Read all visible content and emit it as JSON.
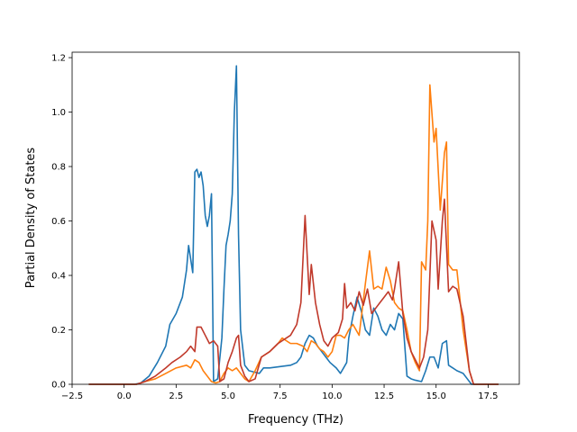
{
  "chart_data": {
    "type": "line",
    "title": "",
    "xlabel": "Frequency (THz)",
    "ylabel": "Partial Density of States",
    "xlim": [
      -2.5,
      19.0
    ],
    "ylim": [
      0.0,
      1.22
    ],
    "xticks": [
      -2.5,
      0.0,
      2.5,
      5.0,
      7.5,
      10.0,
      12.5,
      15.0,
      17.5
    ],
    "xtick_labels": [
      "−2.5",
      "0.0",
      "2.5",
      "5.0",
      "7.5",
      "10.0",
      "12.5",
      "15.0",
      "17.5"
    ],
    "yticks": [
      0.0,
      0.2,
      0.4,
      0.6,
      0.8,
      1.0,
      1.2
    ],
    "ytick_labels": [
      "0.0",
      "0.2",
      "0.4",
      "0.6",
      "0.8",
      "1.0",
      "1.2"
    ],
    "grid": false,
    "legend": false,
    "series": [
      {
        "color": "#1f77b4",
        "points": [
          [
            -1.7,
            0
          ],
          [
            0.5,
            0
          ],
          [
            0.8,
            0.005
          ],
          [
            1.2,
            0.03
          ],
          [
            1.6,
            0.08
          ],
          [
            2.0,
            0.14
          ],
          [
            2.2,
            0.22
          ],
          [
            2.5,
            0.26
          ],
          [
            2.8,
            0.32
          ],
          [
            3.0,
            0.42
          ],
          [
            3.1,
            0.51
          ],
          [
            3.3,
            0.41
          ],
          [
            3.4,
            0.78
          ],
          [
            3.5,
            0.79
          ],
          [
            3.6,
            0.76
          ],
          [
            3.7,
            0.78
          ],
          [
            3.8,
            0.73
          ],
          [
            3.9,
            0.62
          ],
          [
            4.0,
            0.58
          ],
          [
            4.1,
            0.62
          ],
          [
            4.2,
            0.7
          ],
          [
            4.3,
            0.01
          ],
          [
            4.5,
            0.02
          ],
          [
            4.7,
            0.17
          ],
          [
            4.8,
            0.35
          ],
          [
            4.9,
            0.51
          ],
          [
            5.0,
            0.55
          ],
          [
            5.1,
            0.6
          ],
          [
            5.2,
            0.7
          ],
          [
            5.3,
            1.0
          ],
          [
            5.4,
            1.17
          ],
          [
            5.5,
            0.55
          ],
          [
            5.6,
            0.2
          ],
          [
            5.8,
            0.07
          ],
          [
            6.0,
            0.05
          ],
          [
            6.5,
            0.04
          ],
          [
            6.7,
            0.06
          ],
          [
            7.0,
            0.06
          ],
          [
            7.5,
            0.065
          ],
          [
            8.0,
            0.07
          ],
          [
            8.3,
            0.08
          ],
          [
            8.5,
            0.1
          ],
          [
            8.7,
            0.15
          ],
          [
            8.9,
            0.18
          ],
          [
            9.1,
            0.17
          ],
          [
            9.3,
            0.14
          ],
          [
            9.5,
            0.12
          ],
          [
            9.7,
            0.1
          ],
          [
            9.9,
            0.08
          ],
          [
            10.2,
            0.06
          ],
          [
            10.4,
            0.04
          ],
          [
            10.7,
            0.08
          ],
          [
            10.8,
            0.17
          ],
          [
            11.0,
            0.25
          ],
          [
            11.2,
            0.32
          ],
          [
            11.4,
            0.27
          ],
          [
            11.6,
            0.2
          ],
          [
            11.8,
            0.18
          ],
          [
            12.0,
            0.28
          ],
          [
            12.2,
            0.25
          ],
          [
            12.4,
            0.2
          ],
          [
            12.6,
            0.18
          ],
          [
            12.8,
            0.22
          ],
          [
            13.0,
            0.2
          ],
          [
            13.2,
            0.26
          ],
          [
            13.4,
            0.24
          ],
          [
            13.6,
            0.03
          ],
          [
            13.8,
            0.02
          ],
          [
            14.0,
            0.015
          ],
          [
            14.3,
            0.01
          ],
          [
            14.5,
            0.05
          ],
          [
            14.7,
            0.1
          ],
          [
            14.9,
            0.1
          ],
          [
            15.1,
            0.06
          ],
          [
            15.3,
            0.15
          ],
          [
            15.5,
            0.16
          ],
          [
            15.6,
            0.07
          ],
          [
            15.8,
            0.06
          ],
          [
            16.0,
            0.05
          ],
          [
            16.3,
            0.04
          ],
          [
            16.5,
            0.02
          ],
          [
            16.7,
            0
          ],
          [
            18.0,
            0
          ]
        ]
      },
      {
        "color": "#ff7f0e",
        "points": [
          [
            -1.7,
            0
          ],
          [
            0.6,
            0
          ],
          [
            1.0,
            0.01
          ],
          [
            1.5,
            0.02
          ],
          [
            2.0,
            0.04
          ],
          [
            2.5,
            0.06
          ],
          [
            3.0,
            0.07
          ],
          [
            3.2,
            0.06
          ],
          [
            3.4,
            0.09
          ],
          [
            3.6,
            0.08
          ],
          [
            3.8,
            0.05
          ],
          [
            4.0,
            0.03
          ],
          [
            4.2,
            0.01
          ],
          [
            4.4,
            0.005
          ],
          [
            4.6,
            0.01
          ],
          [
            4.8,
            0.04
          ],
          [
            5.0,
            0.06
          ],
          [
            5.2,
            0.05
          ],
          [
            5.4,
            0.06
          ],
          [
            5.6,
            0.04
          ],
          [
            5.8,
            0.02
          ],
          [
            6.0,
            0.01
          ],
          [
            6.3,
            0.05
          ],
          [
            6.6,
            0.1
          ],
          [
            7.0,
            0.12
          ],
          [
            7.4,
            0.15
          ],
          [
            7.6,
            0.17
          ],
          [
            7.8,
            0.16
          ],
          [
            8.0,
            0.15
          ],
          [
            8.3,
            0.15
          ],
          [
            8.6,
            0.14
          ],
          [
            8.8,
            0.12
          ],
          [
            9.0,
            0.16
          ],
          [
            9.2,
            0.15
          ],
          [
            9.4,
            0.13
          ],
          [
            9.6,
            0.12
          ],
          [
            9.8,
            0.1
          ],
          [
            10.0,
            0.12
          ],
          [
            10.2,
            0.18
          ],
          [
            10.4,
            0.18
          ],
          [
            10.6,
            0.17
          ],
          [
            10.8,
            0.2
          ],
          [
            11.0,
            0.22
          ],
          [
            11.3,
            0.18
          ],
          [
            11.6,
            0.37
          ],
          [
            11.8,
            0.49
          ],
          [
            12.0,
            0.35
          ],
          [
            12.2,
            0.36
          ],
          [
            12.4,
            0.35
          ],
          [
            12.6,
            0.43
          ],
          [
            12.8,
            0.38
          ],
          [
            13.0,
            0.3
          ],
          [
            13.2,
            0.28
          ],
          [
            13.4,
            0.27
          ],
          [
            13.6,
            0.2
          ],
          [
            13.8,
            0.12
          ],
          [
            14.0,
            0.08
          ],
          [
            14.2,
            0.05
          ],
          [
            14.3,
            0.45
          ],
          [
            14.5,
            0.42
          ],
          [
            14.6,
            0.6
          ],
          [
            14.7,
            1.1
          ],
          [
            14.9,
            0.89
          ],
          [
            15.0,
            0.94
          ],
          [
            15.2,
            0.64
          ],
          [
            15.4,
            0.85
          ],
          [
            15.5,
            0.89
          ],
          [
            15.6,
            0.44
          ],
          [
            15.8,
            0.42
          ],
          [
            16.0,
            0.42
          ],
          [
            16.3,
            0.2
          ],
          [
            16.6,
            0.05
          ],
          [
            16.8,
            0
          ],
          [
            18.0,
            0
          ]
        ]
      },
      {
        "color": "#c0392b",
        "points": [
          [
            -1.7,
            0
          ],
          [
            0.6,
            0
          ],
          [
            1.0,
            0.01
          ],
          [
            1.5,
            0.03
          ],
          [
            2.0,
            0.06
          ],
          [
            2.3,
            0.08
          ],
          [
            2.7,
            0.1
          ],
          [
            3.0,
            0.12
          ],
          [
            3.2,
            0.14
          ],
          [
            3.4,
            0.12
          ],
          [
            3.5,
            0.21
          ],
          [
            3.7,
            0.21
          ],
          [
            3.9,
            0.18
          ],
          [
            4.1,
            0.15
          ],
          [
            4.3,
            0.16
          ],
          [
            4.5,
            0.14
          ],
          [
            4.6,
            0.01
          ],
          [
            4.8,
            0.02
          ],
          [
            5.0,
            0.08
          ],
          [
            5.2,
            0.12
          ],
          [
            5.4,
            0.17
          ],
          [
            5.5,
            0.18
          ],
          [
            5.6,
            0.07
          ],
          [
            5.8,
            0.03
          ],
          [
            6.0,
            0.01
          ],
          [
            6.3,
            0.02
          ],
          [
            6.6,
            0.1
          ],
          [
            7.0,
            0.12
          ],
          [
            7.4,
            0.15
          ],
          [
            7.8,
            0.17
          ],
          [
            8.0,
            0.18
          ],
          [
            8.3,
            0.22
          ],
          [
            8.5,
            0.3
          ],
          [
            8.7,
            0.62
          ],
          [
            8.9,
            0.33
          ],
          [
            9.0,
            0.44
          ],
          [
            9.2,
            0.3
          ],
          [
            9.4,
            0.22
          ],
          [
            9.6,
            0.16
          ],
          [
            9.8,
            0.14
          ],
          [
            10.0,
            0.17
          ],
          [
            10.3,
            0.19
          ],
          [
            10.5,
            0.24
          ],
          [
            10.6,
            0.37
          ],
          [
            10.7,
            0.28
          ],
          [
            10.9,
            0.3
          ],
          [
            11.1,
            0.27
          ],
          [
            11.3,
            0.34
          ],
          [
            11.5,
            0.29
          ],
          [
            11.7,
            0.35
          ],
          [
            11.9,
            0.26
          ],
          [
            12.1,
            0.28
          ],
          [
            12.3,
            0.3
          ],
          [
            12.5,
            0.32
          ],
          [
            12.7,
            0.34
          ],
          [
            12.9,
            0.31
          ],
          [
            13.0,
            0.35
          ],
          [
            13.2,
            0.45
          ],
          [
            13.4,
            0.26
          ],
          [
            13.6,
            0.17
          ],
          [
            13.8,
            0.12
          ],
          [
            14.0,
            0.09
          ],
          [
            14.2,
            0.06
          ],
          [
            14.4,
            0.1
          ],
          [
            14.6,
            0.2
          ],
          [
            14.8,
            0.6
          ],
          [
            15.0,
            0.53
          ],
          [
            15.1,
            0.35
          ],
          [
            15.3,
            0.6
          ],
          [
            15.4,
            0.68
          ],
          [
            15.6,
            0.34
          ],
          [
            15.8,
            0.36
          ],
          [
            16.0,
            0.35
          ],
          [
            16.3,
            0.25
          ],
          [
            16.6,
            0.05
          ],
          [
            16.8,
            0
          ],
          [
            18.0,
            0
          ]
        ]
      }
    ]
  }
}
